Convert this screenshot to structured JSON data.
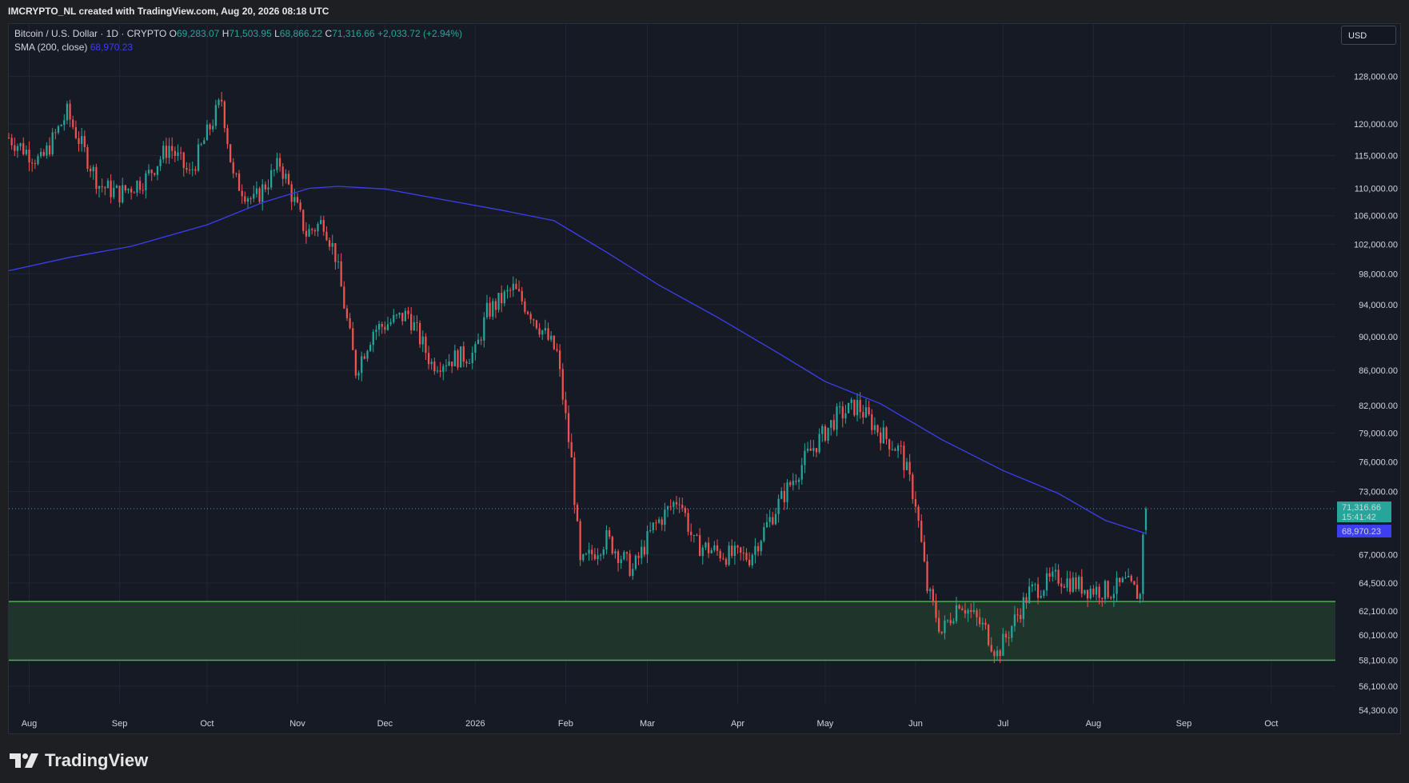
{
  "header": {
    "attribution": "IMCRYPTO_NL created with TradingView.com, Aug 20, 2026 08:18 UTC"
  },
  "legend": {
    "symbol": "Bitcoin / U.S. Dollar · 1D · CRYPTO",
    "open_label": "O",
    "open": "69,283.07",
    "high_label": "H",
    "high": "71,503.95",
    "low_label": "L",
    "low": "68,866.22",
    "close_label": "C",
    "close": "71,316.66",
    "change": "+2,033.72 (+2.94%)",
    "sma_label": "SMA (200, close)",
    "sma_value": "68,970.23"
  },
  "currency": "USD",
  "brand": "TradingView",
  "colors": {
    "up": "#26a69a",
    "down": "#ef5350",
    "sma": "#3d3ef0",
    "zone_fill": "#20382c",
    "zone_line": "#4caf50",
    "background": "#161a25"
  },
  "chart_data": {
    "type": "candlestick",
    "y_scale": "log",
    "ylim": [
      53600,
      133000
    ],
    "y_ticks": [
      "128,000.00",
      "120,000.00",
      "115,000.00",
      "110,000.00",
      "106,000.00",
      "102,000.00",
      "98,000.00",
      "94,000.00",
      "90,000.00",
      "86,000.00",
      "82,000.00",
      "79,000.00",
      "76,000.00",
      "73,000.00",
      "67,000.00",
      "64,500.00",
      "62,100.00",
      "60,100.00",
      "58,100.00",
      "56,100.00",
      "54,300.00"
    ],
    "y_tick_values": [
      128000,
      120000,
      115000,
      110000,
      106000,
      102000,
      98000,
      94000,
      90000,
      86000,
      82000,
      79000,
      76000,
      73000,
      67000,
      64500,
      62100,
      60100,
      58100,
      56100,
      54300
    ],
    "x_ticks": [
      "Aug",
      "Sep",
      "Oct",
      "Nov",
      "Dec",
      "2026",
      "Feb",
      "Mar",
      "Apr",
      "May",
      "Jun",
      "Jul",
      "Aug",
      "Sep",
      "Oct"
    ],
    "x_tick_dates": [
      "2025-08-01",
      "2025-09-01",
      "2025-10-01",
      "2025-11-01",
      "2025-12-01",
      "2026-01-01",
      "2026-02-01",
      "2026-03-01",
      "2026-04-01",
      "2026-05-01",
      "2026-06-01",
      "2026-07-01",
      "2026-08-01",
      "2026-09-01",
      "2026-10-01"
    ],
    "x_range": [
      "2025-07-25",
      "2026-10-23"
    ],
    "last_price_label": "71,316.66",
    "last_price": 71316.66,
    "countdown": "15:41:42",
    "sma_label_value": "68,970.23",
    "sma_last": 68970.23,
    "support_zone": {
      "low": 58100,
      "high": 62900
    },
    "sma200": {
      "dates": [
        "2025-07-25",
        "2025-08-15",
        "2025-09-05",
        "2025-10-01",
        "2025-10-20",
        "2025-11-05",
        "2025-11-15",
        "2025-12-01",
        "2025-12-20",
        "2026-01-10",
        "2026-01-28",
        "2026-02-15",
        "2026-03-05",
        "2026-03-25",
        "2026-04-15",
        "2026-05-01",
        "2026-05-20",
        "2026-06-10",
        "2026-07-01",
        "2026-07-20",
        "2026-08-05",
        "2026-08-19"
      ],
      "values": [
        98400,
        100200,
        101700,
        104700,
        107900,
        110000,
        110300,
        109900,
        108400,
        106800,
        105300,
        100900,
        96500,
        92400,
        88000,
        84700,
        82200,
        78300,
        75100,
        72800,
        70200,
        68970
      ]
    },
    "price_anchors": {
      "dates": [
        "2025-07-25",
        "2025-08-05",
        "2025-08-14",
        "2025-08-25",
        "2025-09-01",
        "2025-09-10",
        "2025-09-18",
        "2025-09-25",
        "2025-10-02",
        "2025-10-06",
        "2025-10-10",
        "2025-10-17",
        "2025-10-26",
        "2025-11-04",
        "2025-11-10",
        "2025-11-14",
        "2025-11-21",
        "2025-11-27",
        "2025-12-09",
        "2025-12-17",
        "2026-01-01",
        "2026-01-05",
        "2026-01-14",
        "2026-01-20",
        "2026-01-29",
        "2026-02-03",
        "2026-02-06",
        "2026-02-15",
        "2026-02-24",
        "2026-03-03",
        "2026-03-12",
        "2026-03-17",
        "2026-03-28",
        "2026-04-05",
        "2026-04-15",
        "2026-04-25",
        "2026-05-05",
        "2026-05-12",
        "2026-05-20",
        "2026-05-27",
        "2026-06-01",
        "2026-06-05",
        "2026-06-10",
        "2026-06-16",
        "2026-06-25",
        "2026-06-29",
        "2026-07-10",
        "2026-07-20",
        "2026-07-30",
        "2026-08-07",
        "2026-08-12",
        "2026-08-17",
        "2026-08-18",
        "2026-08-19"
      ],
      "values": [
        117800,
        114000,
        121800,
        110500,
        109200,
        111500,
        116500,
        112000,
        119500,
        124000,
        111500,
        108000,
        113800,
        103500,
        105200,
        100500,
        86000,
        90800,
        92800,
        86800,
        88000,
        93000,
        96000,
        93000,
        88000,
        76000,
        66000,
        68500,
        65600,
        69500,
        72500,
        68000,
        67000,
        66800,
        71800,
        76700,
        80800,
        82000,
        79000,
        77000,
        72000,
        64000,
        60300,
        63000,
        60500,
        58600,
        63700,
        65000,
        64000,
        63800,
        64500,
        63400,
        69300,
        71316
      ]
    }
  }
}
